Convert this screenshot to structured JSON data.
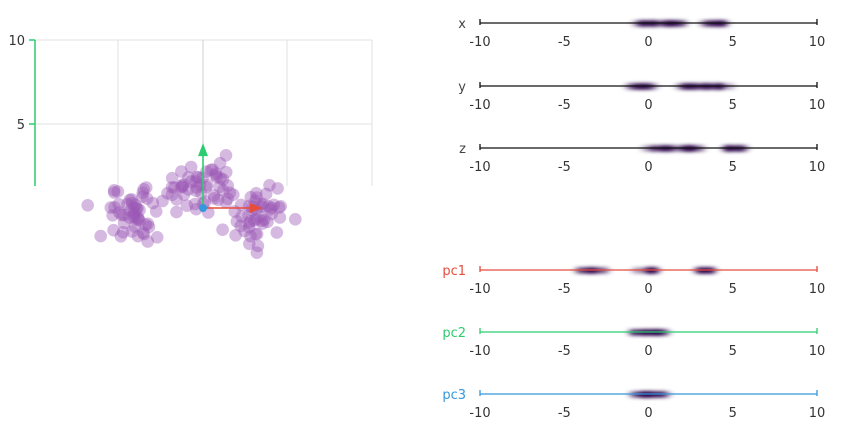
{
  "chart_data": [
    {
      "type": "scatter",
      "projection": "3d",
      "title": "",
      "y_axis_ticks": [
        "10",
        "5"
      ],
      "ylim": [
        0,
        10
      ],
      "grid": true,
      "point_color": "#9b59b6",
      "clusters": [
        {
          "center": [
            -3.5,
            -0.3
          ],
          "spread": [
            1.5,
            1.0
          ],
          "count": 55
        },
        {
          "center": [
            0.0,
            1.4
          ],
          "spread": [
            1.3,
            1.0
          ],
          "count": 50
        },
        {
          "center": [
            3.4,
            -0.4
          ],
          "spread": [
            1.1,
            1.0
          ],
          "count": 50
        }
      ],
      "vectors": [
        {
          "name": "pc1",
          "color": "#e74c3c",
          "direction": [
            3.4,
            0.0
          ]
        },
        {
          "name": "pc2",
          "color": "#2ecc71",
          "direction": [
            0.0,
            3.7
          ]
        },
        {
          "name": "pc3",
          "color": "#3498db",
          "direction": [
            0.0,
            0.0
          ]
        }
      ]
    },
    {
      "type": "density-strip",
      "axes": [
        {
          "label": "x",
          "color": "#111111",
          "xlim": [
            -10,
            10
          ],
          "ticks": [
            "-10",
            "-5",
            "0",
            "5",
            "10"
          ],
          "clusters": [
            {
              "center": 0.0,
              "spread": 0.8
            },
            {
              "center": 1.6,
              "spread": 0.8
            },
            {
              "center": 3.9,
              "spread": 0.9
            }
          ]
        },
        {
          "label": "y",
          "color": "#111111",
          "xlim": [
            -10,
            10
          ],
          "ticks": [
            "-10",
            "-5",
            "0",
            "5",
            "10"
          ],
          "clusters": [
            {
              "center": -0.4,
              "spread": 1.0
            },
            {
              "center": 2.6,
              "spread": 0.9
            },
            {
              "center": 4.0,
              "spread": 0.8
            }
          ]
        },
        {
          "label": "z",
          "color": "#111111",
          "xlim": [
            -10,
            10
          ],
          "ticks": [
            "-10",
            "-5",
            "0",
            "5",
            "10"
          ],
          "clusters": [
            {
              "center": 1.0,
              "spread": 0.9
            },
            {
              "center": 2.6,
              "spread": 0.9
            },
            {
              "center": 5.0,
              "spread": 0.9
            }
          ]
        },
        {
          "label": "pc1",
          "color": "#e74c3c",
          "xlim": [
            -10,
            10
          ],
          "ticks": [
            "-10",
            "-5",
            "0",
            "5",
            "10"
          ],
          "clusters": [
            {
              "center": -3.4,
              "spread": 0.9
            },
            {
              "center": 0.0,
              "spread": 0.9
            },
            {
              "center": 3.4,
              "spread": 0.9
            }
          ]
        },
        {
          "label": "pc2",
          "color": "#2ecc71",
          "xlim": [
            -10,
            10
          ],
          "ticks": [
            "-10",
            "-5",
            "0",
            "5",
            "10"
          ],
          "clusters": [
            {
              "center": -0.3,
              "spread": 0.9
            },
            {
              "center": 0.4,
              "spread": 0.9
            }
          ]
        },
        {
          "label": "pc3",
          "color": "#3498db",
          "xlim": [
            -10,
            10
          ],
          "ticks": [
            "-10",
            "-5",
            "0",
            "5",
            "10"
          ],
          "clusters": [
            {
              "center": -0.3,
              "spread": 0.9
            },
            {
              "center": 0.4,
              "spread": 0.9
            }
          ]
        }
      ]
    }
  ]
}
